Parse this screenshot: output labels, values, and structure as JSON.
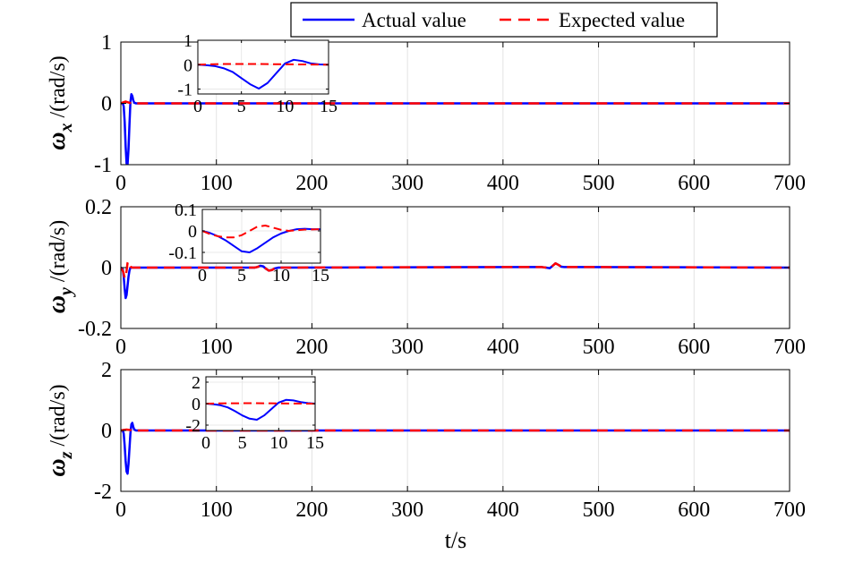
{
  "legend": {
    "items": [
      {
        "label": "Actual value",
        "color": "#0000ff",
        "dash": "solid"
      },
      {
        "label": "Expected value",
        "color": "#ff0000",
        "dash": "dashed"
      }
    ]
  },
  "xlabel": "t/s",
  "chart_data": [
    {
      "type": "line",
      "id": "wx",
      "ylabel": {
        "symbol": "ω",
        "sub": "x",
        "unit": " /(rad/s)"
      },
      "xlim": [
        0,
        700
      ],
      "ylim": [
        -1,
        1
      ],
      "xticks": [
        0,
        100,
        200,
        300,
        400,
        500,
        600,
        700
      ],
      "xtick_labels": [
        "0",
        "100",
        "200",
        "300",
        "400",
        "500",
        "600",
        "700"
      ],
      "yticks": [
        -1,
        0,
        1
      ],
      "ytick_labels": [
        "-1",
        "0",
        "1"
      ],
      "grid": true,
      "series": [
        {
          "name": "Actual value",
          "color": "#0000ff",
          "x": [
            0,
            2,
            3,
            4,
            5,
            6,
            7,
            8,
            9,
            10,
            11,
            12,
            13,
            14,
            16,
            20,
            700
          ],
          "y": [
            0,
            0,
            -0.05,
            -0.3,
            -0.7,
            -0.98,
            -1.0,
            -0.75,
            -0.35,
            0.02,
            0.15,
            0.12,
            0.05,
            0.01,
            0,
            0,
            0
          ]
        },
        {
          "name": "Expected value",
          "color": "#ff0000",
          "x": [
            0,
            3,
            5,
            7,
            9,
            12,
            700
          ],
          "y": [
            0,
            0.02,
            0.03,
            0.02,
            0.01,
            0,
            0
          ]
        }
      ],
      "inset": {
        "xlim": [
          0,
          15
        ],
        "ylim": [
          -1.2,
          1
        ],
        "xticks": [
          0,
          5,
          10,
          15
        ],
        "xtick_labels": [
          "0",
          "5",
          "10",
          "15"
        ],
        "yticks": [
          -1,
          0,
          1
        ],
        "ytick_labels": [
          "-1",
          "0",
          "1"
        ],
        "series": [
          {
            "name": "Actual value",
            "color": "#0000ff",
            "x": [
              0,
              1,
              2,
              3,
              4,
              5,
              6,
              7,
              8,
              9,
              10,
              11,
              12,
              13,
              14,
              15
            ],
            "y": [
              0,
              -0.02,
              -0.06,
              -0.15,
              -0.3,
              -0.55,
              -0.8,
              -0.98,
              -0.75,
              -0.35,
              0.05,
              0.2,
              0.15,
              0.05,
              0.01,
              0
            ]
          },
          {
            "name": "Expected value",
            "color": "#ff0000",
            "x": [
              0,
              3,
              6,
              9,
              12,
              15
            ],
            "y": [
              0,
              0.03,
              0.03,
              0.02,
              0.01,
              0
            ]
          }
        ]
      }
    },
    {
      "type": "line",
      "id": "wy",
      "ylabel": {
        "symbol": "ω",
        "sub": "y",
        "unit": " /(rad/s)"
      },
      "xlim": [
        0,
        700
      ],
      "ylim": [
        -0.2,
        0.2
      ],
      "xticks": [
        0,
        100,
        200,
        300,
        400,
        500,
        600,
        700
      ],
      "xtick_labels": [
        "0",
        "100",
        "200",
        "300",
        "400",
        "500",
        "600",
        "700"
      ],
      "yticks": [
        -0.2,
        0,
        0.2
      ],
      "ytick_labels": [
        "-0.2",
        "0",
        "0.2"
      ],
      "grid": true,
      "series": [
        {
          "name": "Actual value",
          "color": "#0000ff",
          "x": [
            0,
            2,
            3,
            4,
            5,
            6,
            7,
            8,
            9,
            10,
            12,
            15,
            140,
            143,
            146,
            149,
            152,
            155,
            158,
            161,
            165,
            440,
            445,
            449,
            452,
            455,
            458,
            461,
            464,
            470,
            700
          ],
          "y": [
            0,
            -0.005,
            -0.03,
            -0.07,
            -0.1,
            -0.09,
            -0.06,
            -0.03,
            -0.01,
            0,
            0,
            0,
            0,
            0.002,
            0.006,
            0.004,
            -0.004,
            -0.01,
            -0.008,
            -0.003,
            0,
            0.002,
            0,
            -0.002,
            0.006,
            0.014,
            0.009,
            0.003,
            0.002,
            0.002,
            0
          ]
        },
        {
          "name": "Expected value",
          "color": "#ff0000",
          "x": [
            0,
            2,
            3,
            4,
            5,
            6,
            7,
            8,
            9,
            10,
            12,
            15,
            140,
            143,
            146,
            149,
            152,
            155,
            158,
            161,
            165,
            440,
            445,
            449,
            452,
            455,
            458,
            461,
            464,
            470,
            700
          ],
          "y": [
            0,
            -0.01,
            -0.02,
            -0.035,
            -0.03,
            -0.01,
            0.015,
            0.02,
            0.01,
            0.003,
            0,
            0,
            0,
            0.002,
            0.006,
            0.004,
            -0.004,
            -0.01,
            -0.008,
            -0.003,
            0,
            0.002,
            0,
            -0.002,
            0.006,
            0.014,
            0.009,
            0.003,
            0.002,
            0.002,
            0
          ]
        }
      ],
      "inset": {
        "xlim": [
          0,
          15
        ],
        "ylim": [
          -0.15,
          0.1
        ],
        "xticks": [
          0,
          5,
          10,
          15
        ],
        "xtick_labels": [
          "0",
          "5",
          "10",
          "15"
        ],
        "yticks": [
          -0.1,
          0,
          0.1
        ],
        "ytick_labels": [
          "-0.1",
          "0",
          "0.1"
        ],
        "series": [
          {
            "name": "Actual value",
            "color": "#0000ff",
            "x": [
              0,
              1,
              2,
              3,
              4,
              5,
              6,
              7,
              8,
              9,
              10,
              11,
              12,
              13,
              14,
              15
            ],
            "y": [
              0,
              -0.01,
              -0.025,
              -0.045,
              -0.07,
              -0.095,
              -0.1,
              -0.08,
              -0.055,
              -0.03,
              -0.012,
              0,
              0.008,
              0.01,
              0.008,
              0.008
            ]
          },
          {
            "name": "Expected value",
            "color": "#ff0000",
            "x": [
              0,
              1,
              2,
              3,
              4,
              5,
              6,
              7,
              8,
              9,
              10,
              11,
              12,
              13,
              14,
              15
            ],
            "y": [
              0,
              -0.015,
              -0.025,
              -0.03,
              -0.03,
              -0.02,
              0.0,
              0.02,
              0.025,
              0.015,
              0.005,
              0,
              0.003,
              0.006,
              0.007,
              0.008
            ]
          }
        ]
      }
    },
    {
      "type": "line",
      "id": "wz",
      "ylabel": {
        "symbol": "ω",
        "sub": "z",
        "unit": " /(rad/s)"
      },
      "xlim": [
        0,
        700
      ],
      "ylim": [
        -2,
        2
      ],
      "xticks": [
        0,
        100,
        200,
        300,
        400,
        500,
        600,
        700
      ],
      "xtick_labels": [
        "0",
        "100",
        "200",
        "300",
        "400",
        "500",
        "600",
        "700"
      ],
      "yticks": [
        -2,
        0,
        2
      ],
      "ytick_labels": [
        "-2",
        "0",
        "2"
      ],
      "grid": true,
      "series": [
        {
          "name": "Actual value",
          "color": "#0000ff",
          "x": [
            0,
            2,
            3,
            4,
            5,
            6,
            7,
            8,
            9,
            10,
            11,
            12,
            13,
            14,
            16,
            20,
            700
          ],
          "y": [
            0,
            0,
            -0.1,
            -0.5,
            -1.0,
            -1.35,
            -1.42,
            -1.1,
            -0.6,
            -0.1,
            0.2,
            0.25,
            0.12,
            0.03,
            0,
            0,
            0
          ]
        },
        {
          "name": "Expected value",
          "color": "#ff0000",
          "x": [
            0,
            3,
            6,
            9,
            12,
            700
          ],
          "y": [
            0,
            0.02,
            0.03,
            0.02,
            0,
            0
          ]
        }
      ],
      "inset": {
        "xlim": [
          0,
          15
        ],
        "ylim": [
          -2.5,
          2.5
        ],
        "xticks": [
          0,
          5,
          10,
          15
        ],
        "xtick_labels": [
          "0",
          "5",
          "10",
          "15"
        ],
        "yticks": [
          -2,
          0,
          2
        ],
        "ytick_labels": [
          "-2",
          "0",
          "2"
        ],
        "series": [
          {
            "name": "Actual value",
            "color": "#0000ff",
            "x": [
              0,
              1,
              2,
              3,
              4,
              5,
              6,
              7,
              8,
              9,
              10,
              11,
              12,
              13,
              14,
              15
            ],
            "y": [
              0,
              -0.05,
              -0.15,
              -0.35,
              -0.7,
              -1.1,
              -1.4,
              -1.5,
              -1.1,
              -0.5,
              0.1,
              0.35,
              0.3,
              0.15,
              0.05,
              0
            ]
          },
          {
            "name": "Expected value",
            "color": "#ff0000",
            "x": [
              0,
              3,
              6,
              9,
              12,
              15
            ],
            "y": [
              0,
              0.03,
              0.04,
              0.03,
              0.01,
              0
            ]
          }
        ]
      }
    }
  ]
}
